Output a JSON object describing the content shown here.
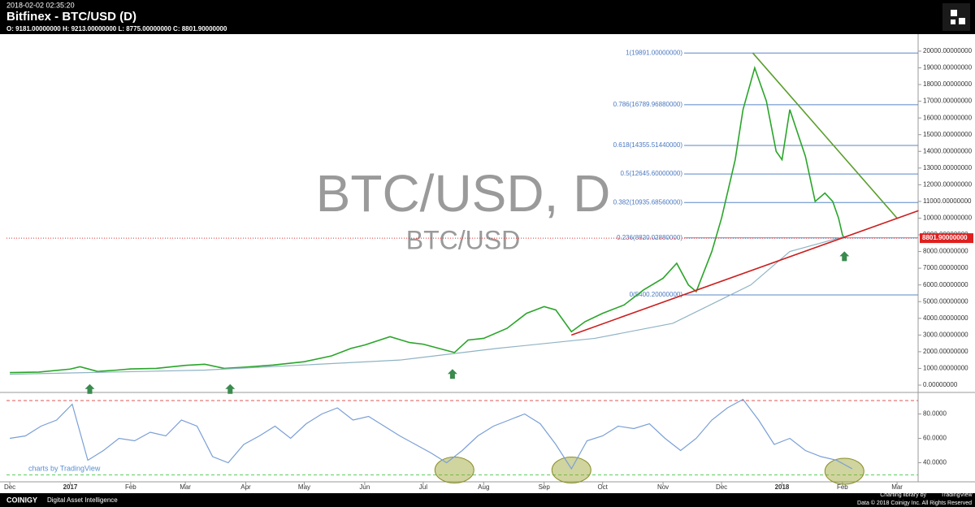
{
  "header": {
    "timestamp": "2018-02-02 02:35:20",
    "title": "Bitfinex - BTC/USD (D)",
    "ohlc": "O: 9181.00000000 H: 9213.00000000 L: 8775.00000000 C: 8801.90000000"
  },
  "attribution": "charts by TradingView",
  "footer": {
    "brand": "COINIGY",
    "tagline": "Digital Asset Intelligence",
    "credit": "Charting library by",
    "credit_brand": "TradingView",
    "copyright": "Data © 2018 Coinigy Inc. All Rights Reserved"
  },
  "chart_data": [
    {
      "type": "line",
      "title": "BTC/USD, D",
      "subtitle": "BTC/USD",
      "x": [
        0,
        15,
        31,
        36,
        45,
        55,
        62,
        75,
        90,
        100,
        110,
        121,
        135,
        151,
        165,
        175,
        182,
        195,
        205,
        212,
        228,
        235,
        243,
        255,
        265,
        274,
        280,
        288,
        295,
        304,
        315,
        325,
        335,
        342,
        348,
        352,
        360,
        365,
        372,
        376,
        382,
        388,
        393,
        396,
        400,
        408,
        413,
        418,
        422,
        425,
        427,
        428
      ],
      "series": [
        {
          "name": "BTC/USD",
          "color": "#2aa52a",
          "values": [
            750,
            780,
            960,
            1100,
            820,
            900,
            970,
            1000,
            1180,
            1250,
            1000,
            1080,
            1200,
            1400,
            1750,
            2200,
            2400,
            2900,
            2550,
            2450,
            1950,
            2700,
            2800,
            3400,
            4300,
            4700,
            4500,
            3200,
            3800,
            4300,
            4800,
            5700,
            6400,
            7300,
            6000,
            5600,
            8000,
            10000,
            13500,
            16500,
            19000,
            17000,
            14000,
            13500,
            16500,
            13700,
            11000,
            11500,
            11000,
            10000,
            9000,
            8801.9
          ]
        },
        {
          "color": "#8fb3c4",
          "x": [
            0,
            100,
            200,
            250,
            300,
            340,
            380,
            400,
            428
          ],
          "values": [
            650,
            900,
            1500,
            2200,
            2800,
            3700,
            6000,
            8000,
            8900
          ]
        }
      ],
      "last_price": {
        "value": 8801.9,
        "label": "8801.90000000"
      },
      "fib": [
        {
          "label": "1(19891.00000000)",
          "value": 19891
        },
        {
          "label": "0.786(16789.96880000)",
          "value": 16789.9688
        },
        {
          "label": "0.618(14355.51440000)",
          "value": 14355.5144
        },
        {
          "label": "0.5(12645.60000000)",
          "value": 12645.6
        },
        {
          "label": "0.382(10935.68560000)",
          "value": 10935.6856
        },
        {
          "label": "0.236(8820.02880000)",
          "value": 8820.0288
        },
        {
          "label": "0(5400.20000000)",
          "value": 5400.2
        }
      ],
      "trendlines": [
        {
          "color": "#5a9e2a",
          "x": [
            381,
            455
          ],
          "values": [
            19891,
            10000
          ]
        },
        {
          "color": "#cc1f1f",
          "x": [
            288,
            466
          ],
          "values": [
            3000,
            10450
          ]
        }
      ],
      "arrows": {
        "x": [
          41,
          113,
          227,
          428
        ],
        "values": [
          350,
          350,
          1250,
          8300
        ]
      },
      "xlim": [
        -1.7,
        465.8
      ],
      "xticks": [
        {
          "value": 0,
          "label": "Dec"
        },
        {
          "value": 31,
          "label": "2017"
        },
        {
          "value": 62,
          "label": "Feb"
        },
        {
          "value": 90,
          "label": "Mar"
        },
        {
          "value": 121,
          "label": "Apr"
        },
        {
          "value": 151,
          "label": "May"
        },
        {
          "value": 182,
          "label": "Jun"
        },
        {
          "value": 212,
          "label": "Jul"
        },
        {
          "value": 243,
          "label": "Aug"
        },
        {
          "value": 274,
          "label": "Sep"
        },
        {
          "value": 304,
          "label": "Oct"
        },
        {
          "value": 335,
          "label": "Nov"
        },
        {
          "value": 365,
          "label": "Dec"
        },
        {
          "value": 396,
          "label": "2018"
        },
        {
          "value": 427,
          "label": "Feb"
        },
        {
          "value": 455,
          "label": "Mar"
        }
      ],
      "ylim": [
        -390,
        21020
      ],
      "yticks": [
        {
          "value": 0,
          "label": "0.00000000"
        },
        {
          "value": 1000,
          "label": "1000.00000000"
        },
        {
          "value": 2000,
          "label": "2000.00000000"
        },
        {
          "value": 3000,
          "label": "3000.00000000"
        },
        {
          "value": 4000,
          "label": "4000.00000000"
        },
        {
          "value": 5000,
          "label": "5000.00000000"
        },
        {
          "value": 6000,
          "label": "6000.00000000"
        },
        {
          "value": 7000,
          "label": "7000.00000000"
        },
        {
          "value": 8000,
          "label": "8000.00000000"
        },
        {
          "value": 9000,
          "label": "9000.00000000"
        },
        {
          "value": 10000,
          "label": "10000.00000000"
        },
        {
          "value": 11000,
          "label": "11000.00000000"
        },
        {
          "value": 12000,
          "label": "12000.00000000"
        },
        {
          "value": 13000,
          "label": "13000.00000000"
        },
        {
          "value": 14000,
          "label": "14000.00000000"
        },
        {
          "value": 15000,
          "label": "15000.00000000"
        },
        {
          "value": 16000,
          "label": "16000.00000000"
        },
        {
          "value": 17000,
          "label": "17000.00000000"
        },
        {
          "value": 18000,
          "label": "18000.00000000"
        },
        {
          "value": 19000,
          "label": "19000.00000000"
        },
        {
          "value": 20000,
          "label": "20000.00000000"
        }
      ]
    },
    {
      "type": "line",
      "x": [
        0,
        8,
        16,
        24,
        32,
        40,
        48,
        56,
        64,
        72,
        80,
        88,
        96,
        104,
        112,
        120,
        128,
        136,
        144,
        152,
        160,
        168,
        176,
        184,
        192,
        200,
        208,
        216,
        224,
        232,
        240,
        248,
        256,
        264,
        272,
        280,
        288,
        296,
        304,
        312,
        320,
        328,
        336,
        344,
        352,
        360,
        368,
        376,
        384,
        392,
        400,
        408,
        416,
        424,
        432
      ],
      "series": [
        {
          "color": "#7a9fd6",
          "values": [
            60,
            62,
            70,
            75,
            88,
            42,
            50,
            60,
            58,
            65,
            62,
            75,
            70,
            45,
            40,
            55,
            62,
            70,
            60,
            72,
            80,
            85,
            75,
            78,
            70,
            62,
            55,
            48,
            40,
            50,
            62,
            70,
            75,
            80,
            72,
            55,
            35,
            58,
            62,
            70,
            68,
            72,
            60,
            50,
            60,
            75,
            85,
            92,
            75,
            55,
            60,
            50,
            45,
            42,
            35
          ]
        }
      ],
      "levels": [
        {
          "value": 91,
          "color": "#e05555"
        },
        {
          "value": 30,
          "color": "#5ecf5e"
        }
      ],
      "ellipses": {
        "x": [
          228,
          288,
          428
        ],
        "values": [
          34,
          34,
          33
        ]
      },
      "xlim": [
        -1.7,
        465.8
      ],
      "ylim": [
        25,
        97
      ],
      "yticks": [
        {
          "value": 40,
          "label": "40.0000"
        },
        {
          "value": 60,
          "label": "60.0000"
        },
        {
          "value": 80,
          "label": "80.0000"
        }
      ]
    }
  ]
}
